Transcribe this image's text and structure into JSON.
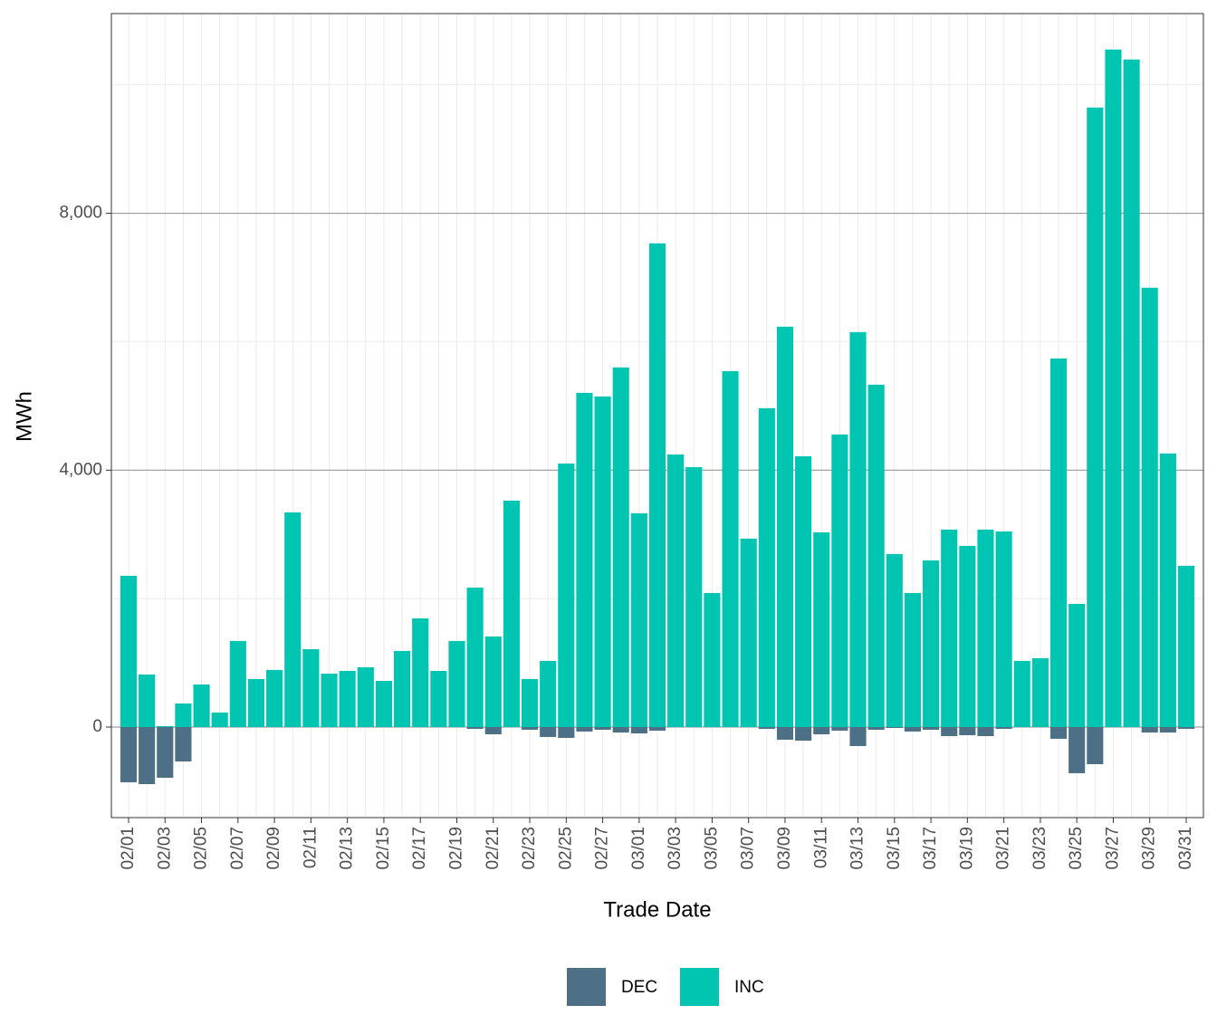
{
  "chart_data": {
    "type": "bar",
    "x_label": "Trade Date",
    "y_label": "MWh",
    "categories": [
      "02/01",
      null,
      "02/03",
      null,
      "02/05",
      null,
      "02/07",
      null,
      "02/09",
      null,
      "02/11",
      null,
      "02/13",
      null,
      "02/15",
      null,
      "02/17",
      null,
      "02/19",
      null,
      "02/21",
      null,
      "02/23",
      null,
      "02/25",
      null,
      "02/27",
      null,
      "03/01",
      null,
      "03/03",
      null,
      "03/05",
      null,
      "03/07",
      null,
      "03/09",
      null,
      "03/11",
      null,
      "03/13",
      null,
      "03/15",
      null,
      "03/17",
      null,
      "03/19",
      null,
      "03/21",
      null,
      "03/23",
      null,
      "03/25",
      null,
      "03/27",
      null,
      "03/29",
      null,
      "03/31"
    ],
    "series": [
      {
        "name": "DEC",
        "color": "#4e7086",
        "values": [
          -860,
          -889,
          -790,
          -536,
          0,
          0,
          0,
          0,
          0,
          0,
          0,
          0,
          0,
          0,
          0,
          0,
          0,
          0,
          0,
          -28,
          -113,
          0,
          -42,
          -155,
          -169,
          -70,
          -42,
          -85,
          -99,
          -56,
          0,
          0,
          0,
          0,
          0,
          -28,
          -197,
          -212,
          -113,
          -56,
          -296,
          -42,
          -14,
          -70,
          -42,
          -141,
          -127,
          -141,
          -28,
          0,
          0,
          -183,
          -719,
          -578,
          0,
          0,
          -85,
          -85,
          -28
        ]
      },
      {
        "name": "INC",
        "color": "#00c5b0",
        "values": [
          2355,
          818,
          15,
          367,
          663,
          226,
          1340,
          748,
          889,
          3343,
          1213,
          832,
          874,
          931,
          719,
          1185,
          1693,
          874,
          1340,
          2172,
          1410,
          3526,
          748,
          1030,
          4104,
          5204,
          5148,
          5600,
          3329,
          7532,
          4245,
          4048,
          2087,
          5543,
          2934,
          4965,
          6234,
          4217,
          3032,
          4556,
          6150,
          5331,
          2694,
          2087,
          2595,
          3075,
          2821,
          3075,
          3047,
          1030,
          1072,
          5740,
          1918,
          9647,
          10550,
          10395,
          6841,
          4260,
          2511
        ]
      }
    ],
    "ylim": [
      -1410,
      11110
    ],
    "yticks": [
      0,
      {
        "value": 4000,
        "label": "4,000"
      },
      {
        "value": 8000,
        "label": "8,000"
      }
    ],
    "grid": true,
    "legend": "bottom"
  }
}
